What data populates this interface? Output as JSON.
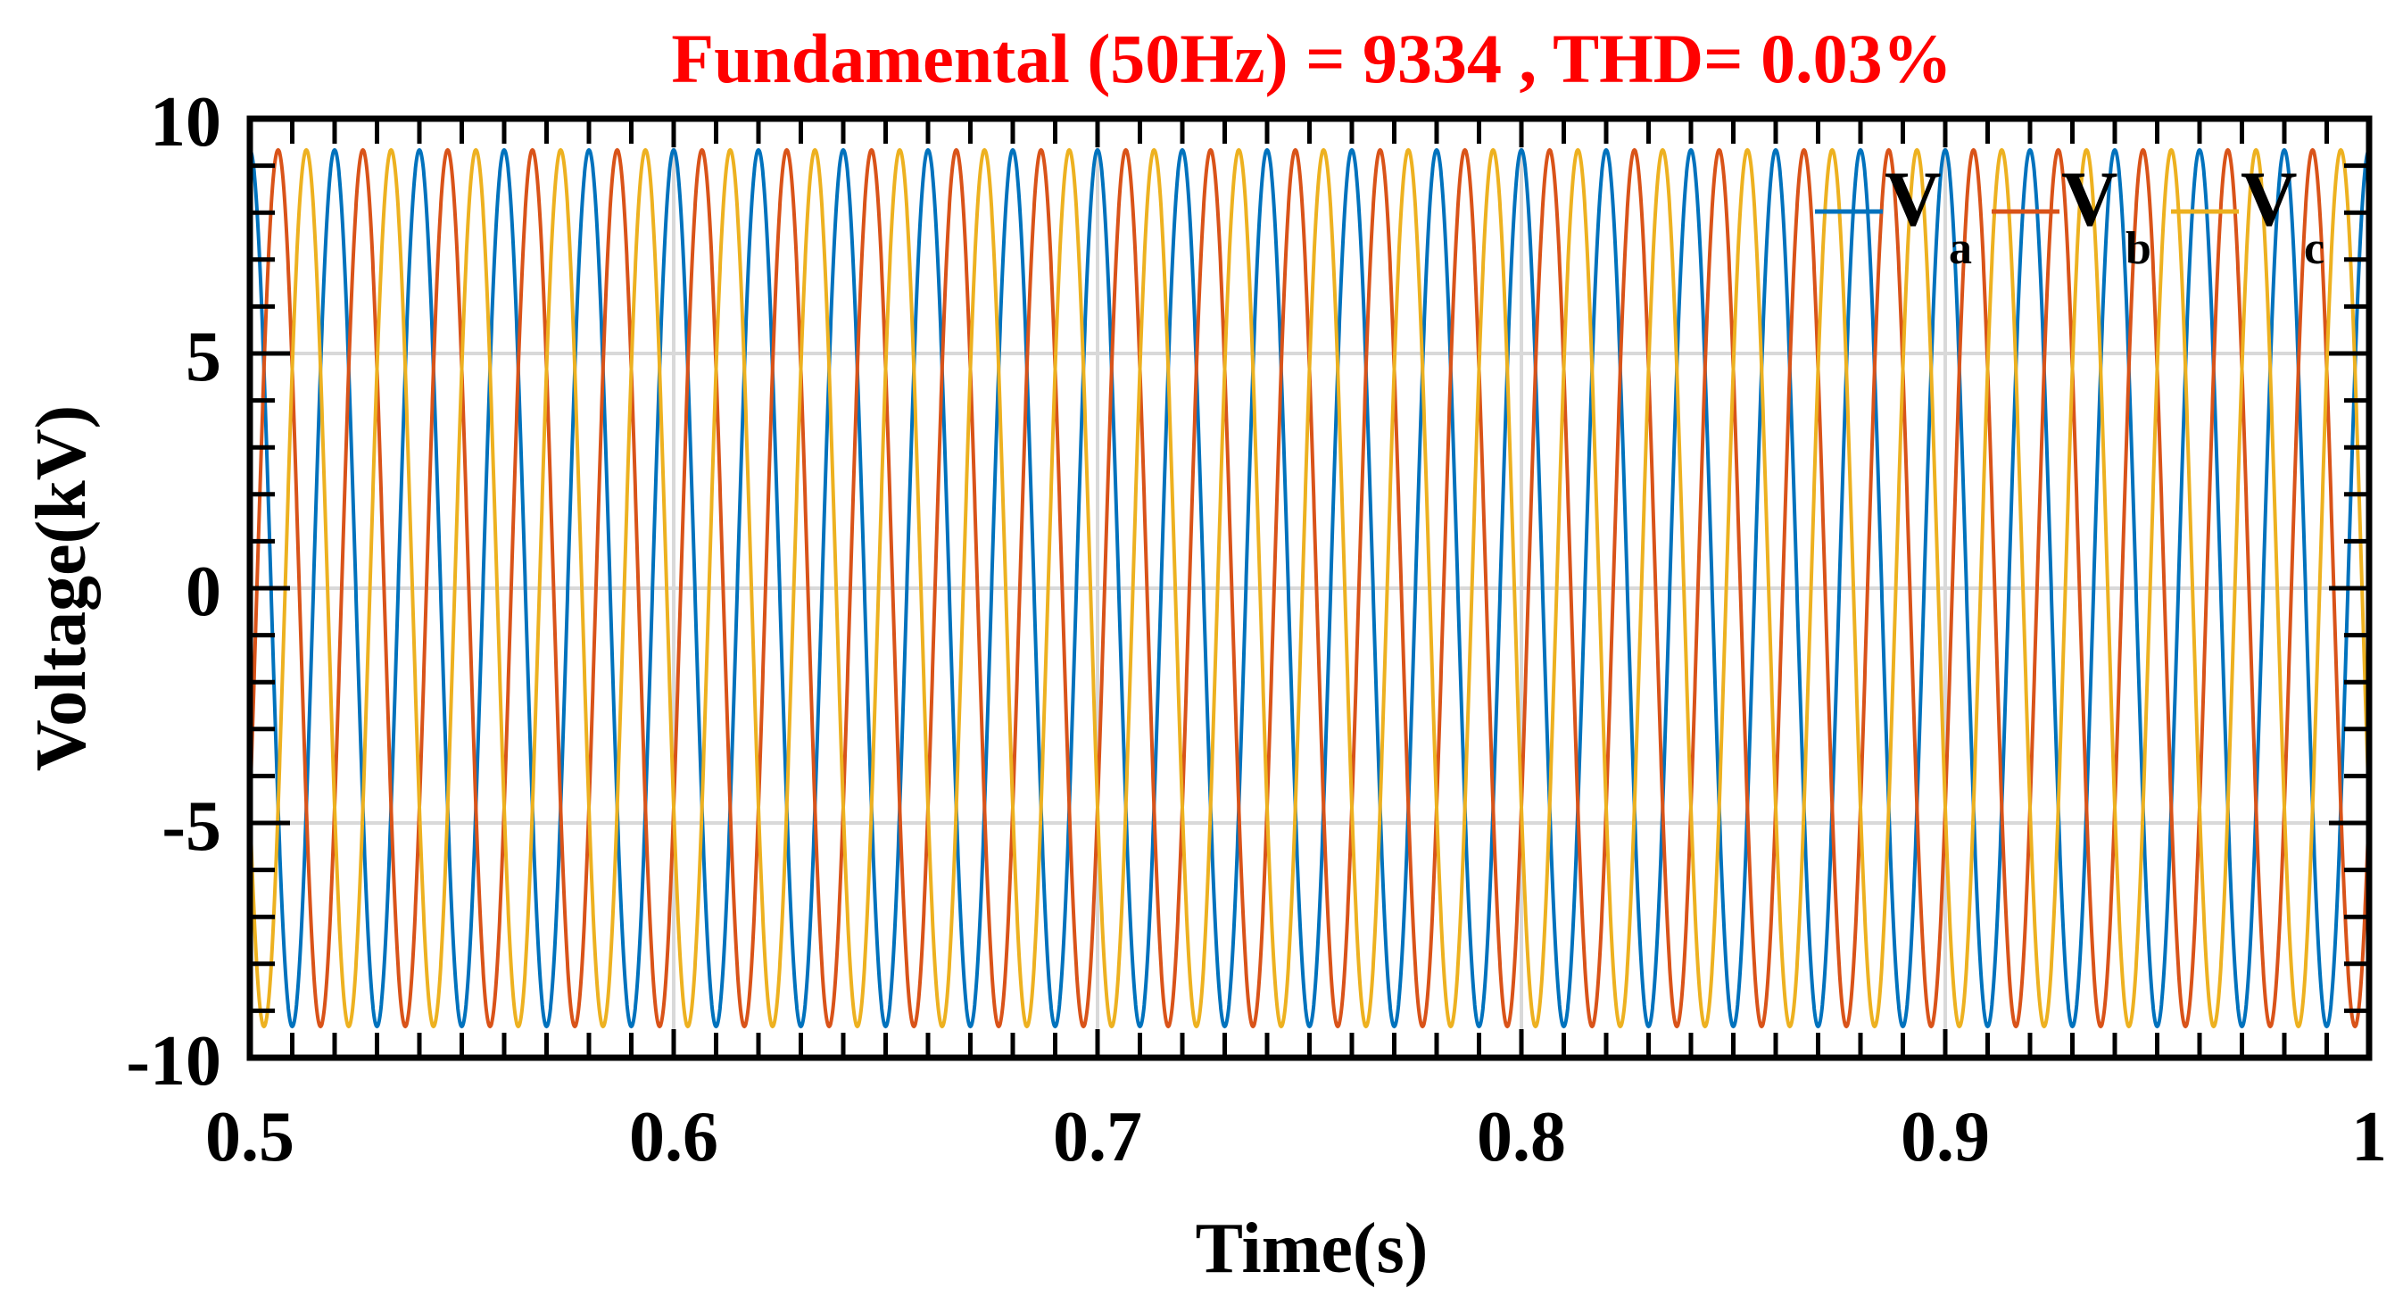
{
  "chart_data": {
    "type": "line",
    "title": "Fundamental (50Hz) = 9334 , THD= 0.03%",
    "xlabel": "Time(s)",
    "ylabel": "Voltage(kV)",
    "xlim": [
      0.5,
      1.0
    ],
    "ylim": [
      -10,
      10
    ],
    "x_ticks": [
      "0.5",
      "0.6",
      "0.7",
      "0.8",
      "0.9",
      "1"
    ],
    "y_ticks": [
      "10",
      "5",
      "0",
      "-5",
      "-10"
    ],
    "grid": true,
    "legend_position": "top-right",
    "frequency_hz": 50,
    "amplitude_kv": 9.334,
    "thd_percent": 0.03,
    "series": [
      {
        "name": "Va",
        "label_main": "V",
        "label_sub": "a",
        "color": "#0072BD",
        "phase_deg": 0
      },
      {
        "name": "Vb",
        "label_main": "V",
        "label_sub": "b",
        "color": "#D95319",
        "phase_deg": -120
      },
      {
        "name": "Vc",
        "label_main": "V",
        "label_sub": "c",
        "color": "#EDB120",
        "phase_deg": 120
      }
    ]
  }
}
